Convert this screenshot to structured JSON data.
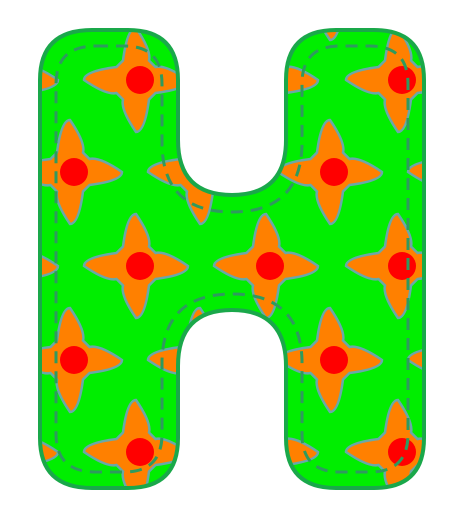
{
  "graphic": {
    "kind": "decorative-letter",
    "glyph": "H",
    "pattern": "quatrefoil-flower",
    "colors": {
      "background": "#ffffff",
      "fill": "#00ee00",
      "outline": "#1aa84a",
      "stitch": "#2e9a5e",
      "petal": "#ff8000",
      "petal_outline": "#6aa8a8",
      "center": "#ff0000"
    }
  }
}
